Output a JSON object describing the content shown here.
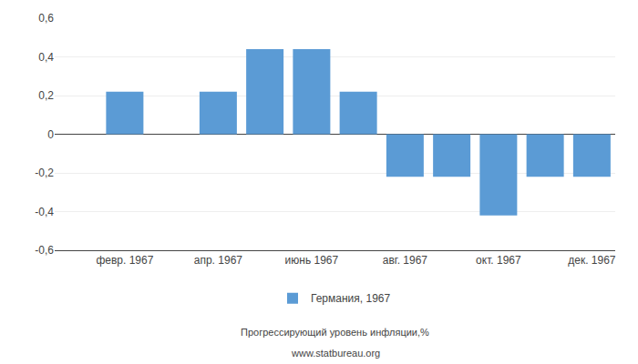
{
  "chart_data": {
    "type": "bar",
    "x": [
      2,
      4,
      5,
      6,
      7,
      8,
      9,
      10,
      11,
      12
    ],
    "series": [
      {
        "name": "Германия, 1967",
        "color": "#5b9bd5",
        "values": [
          0.22,
          0.22,
          0.44,
          0.44,
          0.22,
          -0.22,
          -0.22,
          -0.42,
          -0.22,
          -0.22
        ]
      }
    ],
    "xlim": [
      0.5,
      12.5
    ],
    "xticks": [
      {
        "value": 2,
        "label": "февр. 1967"
      },
      {
        "value": 4,
        "label": "апр. 1967"
      },
      {
        "value": 6,
        "label": "июнь 1967"
      },
      {
        "value": 8,
        "label": "авг. 1967"
      },
      {
        "value": 10,
        "label": "окт. 1967"
      },
      {
        "value": 12,
        "label": "дек. 1967"
      }
    ],
    "ylim": [
      -0.6,
      0.6
    ],
    "yticks": [
      {
        "value": -0.6,
        "label": "-0,6"
      },
      {
        "value": -0.4,
        "label": "-0,4"
      },
      {
        "value": -0.2,
        "label": "-0,2"
      },
      0,
      {
        "value": 0.2,
        "label": "0,2"
      },
      {
        "value": 0.4,
        "label": "0,4"
      },
      {
        "value": 0.6,
        "label": "0,6"
      }
    ],
    "grid": true,
    "legend": "bottom",
    "annotations": [
      "Прогрессирующий уровень инфляции,%",
      "www.statbureau.org"
    ]
  }
}
